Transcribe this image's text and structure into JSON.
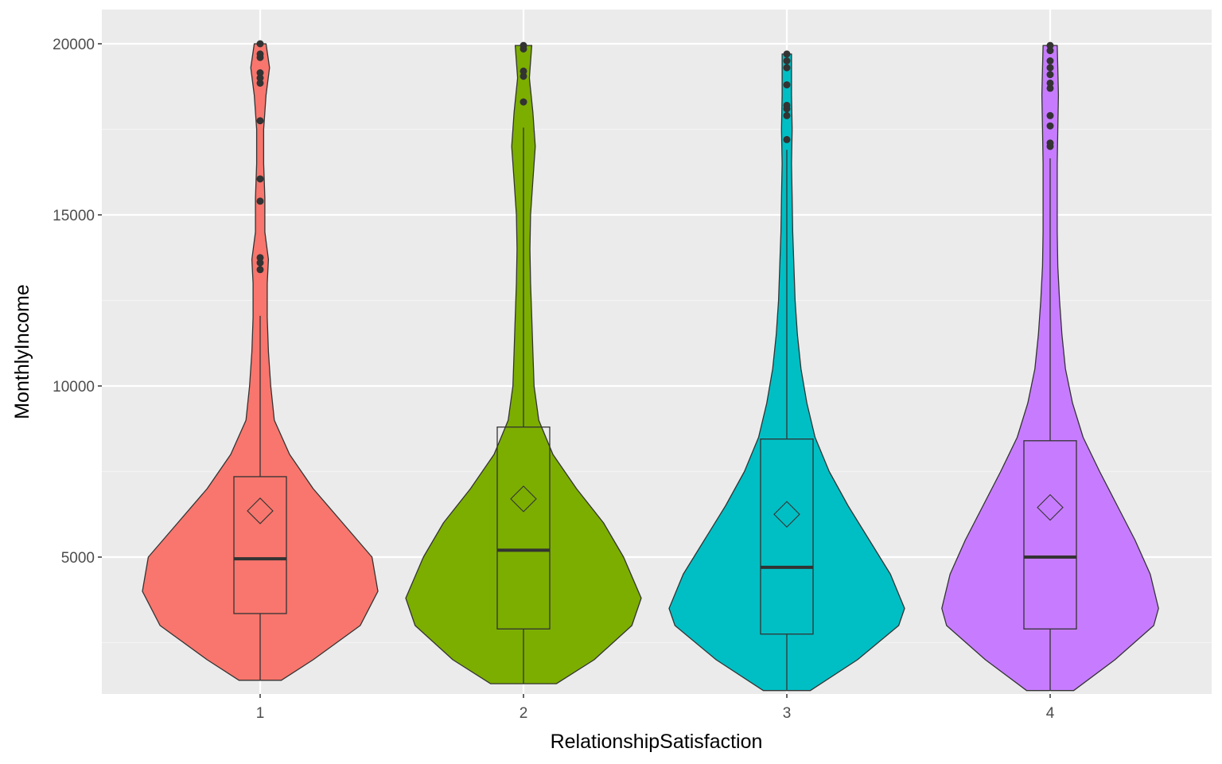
{
  "chart_data": {
    "type": "violin",
    "xlabel": "RelationshipSatisfaction",
    "ylabel": "MonthlyIncome",
    "ylim": [
      1000,
      21000
    ],
    "yticks": [
      5000,
      10000,
      15000,
      20000
    ],
    "grid": true,
    "legend": "none",
    "background_color": "#ebebeb",
    "categories": [
      "1",
      "2",
      "3",
      "4"
    ],
    "series": [
      {
        "category": "1",
        "color": "#f8766d",
        "min": 1400,
        "q1": 3350,
        "median": 4950,
        "q3": 7350,
        "whisker_low": 1400,
        "whisker_high": 12050,
        "max": 20000,
        "mean": 6350,
        "outliers": [
          13400,
          13600,
          13750,
          15400,
          16050,
          17750,
          18850,
          19000,
          19150,
          19600,
          19700,
          20000
        ],
        "density": [
          [
            1400,
            0.18
          ],
          [
            2000,
            0.45
          ],
          [
            3000,
            0.85
          ],
          [
            4000,
            1.0
          ],
          [
            5000,
            0.95
          ],
          [
            6000,
            0.7
          ],
          [
            7000,
            0.45
          ],
          [
            8000,
            0.25
          ],
          [
            9000,
            0.12
          ],
          [
            10000,
            0.09
          ],
          [
            11000,
            0.07
          ],
          [
            12000,
            0.06
          ],
          [
            13000,
            0.06
          ],
          [
            13700,
            0.07
          ],
          [
            14500,
            0.04
          ],
          [
            15500,
            0.04
          ],
          [
            16500,
            0.03
          ],
          [
            17500,
            0.03
          ],
          [
            18500,
            0.05
          ],
          [
            19300,
            0.08
          ],
          [
            20000,
            0.05
          ]
        ]
      },
      {
        "category": "2",
        "color": "#7cae00",
        "min": 1300,
        "q1": 2900,
        "median": 5200,
        "q3": 8800,
        "whisker_low": 1300,
        "whisker_high": 17550,
        "max": 19950,
        "mean": 6700,
        "outliers": [
          18300,
          19050,
          19200,
          19850,
          19950
        ],
        "density": [
          [
            1300,
            0.28
          ],
          [
            2000,
            0.6
          ],
          [
            3000,
            0.92
          ],
          [
            3800,
            1.0
          ],
          [
            5000,
            0.85
          ],
          [
            6000,
            0.68
          ],
          [
            7000,
            0.45
          ],
          [
            8000,
            0.25
          ],
          [
            9000,
            0.13
          ],
          [
            10000,
            0.09
          ],
          [
            11000,
            0.08
          ],
          [
            12000,
            0.07
          ],
          [
            13000,
            0.06
          ],
          [
            14000,
            0.055
          ],
          [
            15000,
            0.06
          ],
          [
            16000,
            0.08
          ],
          [
            17000,
            0.1
          ],
          [
            18000,
            0.08
          ],
          [
            19000,
            0.05
          ],
          [
            19950,
            0.07
          ]
        ]
      },
      {
        "category": "3",
        "color": "#00bfc4",
        "min": 1100,
        "q1": 2750,
        "median": 4700,
        "q3": 8450,
        "whisker_low": 1100,
        "whisker_high": 16900,
        "max": 19700,
        "mean": 6250,
        "outliers": [
          17200,
          17900,
          18100,
          18200,
          18800,
          19300,
          19500,
          19700
        ],
        "density": [
          [
            1100,
            0.2
          ],
          [
            2000,
            0.6
          ],
          [
            3000,
            0.95
          ],
          [
            3500,
            1.0
          ],
          [
            4500,
            0.88
          ],
          [
            5500,
            0.7
          ],
          [
            6500,
            0.52
          ],
          [
            7500,
            0.36
          ],
          [
            8500,
            0.24
          ],
          [
            9500,
            0.17
          ],
          [
            10500,
            0.12
          ],
          [
            11500,
            0.09
          ],
          [
            12500,
            0.07
          ],
          [
            13500,
            0.06
          ],
          [
            14500,
            0.05
          ],
          [
            15500,
            0.045
          ],
          [
            16500,
            0.04
          ],
          [
            17500,
            0.045
          ],
          [
            18500,
            0.04
          ],
          [
            19700,
            0.04
          ]
        ]
      },
      {
        "category": "4",
        "color": "#c77cff",
        "min": 1100,
        "q1": 2900,
        "median": 5000,
        "q3": 8400,
        "whisker_low": 1100,
        "whisker_high": 16650,
        "max": 19950,
        "mean": 6450,
        "outliers": [
          17000,
          17100,
          17600,
          17900,
          18700,
          18850,
          19100,
          19300,
          19500,
          19800,
          19950
        ],
        "density": [
          [
            1100,
            0.2
          ],
          [
            2000,
            0.55
          ],
          [
            3000,
            0.88
          ],
          [
            3500,
            0.92
          ],
          [
            4500,
            0.85
          ],
          [
            5500,
            0.72
          ],
          [
            6500,
            0.57
          ],
          [
            7500,
            0.42
          ],
          [
            8500,
            0.28
          ],
          [
            9500,
            0.19
          ],
          [
            10500,
            0.13
          ],
          [
            11500,
            0.1
          ],
          [
            12500,
            0.08
          ],
          [
            13500,
            0.065
          ],
          [
            14500,
            0.06
          ],
          [
            15500,
            0.06
          ],
          [
            16500,
            0.06
          ],
          [
            17500,
            0.065
          ],
          [
            18500,
            0.07
          ],
          [
            19300,
            0.065
          ],
          [
            19950,
            0.06
          ]
        ]
      }
    ]
  }
}
